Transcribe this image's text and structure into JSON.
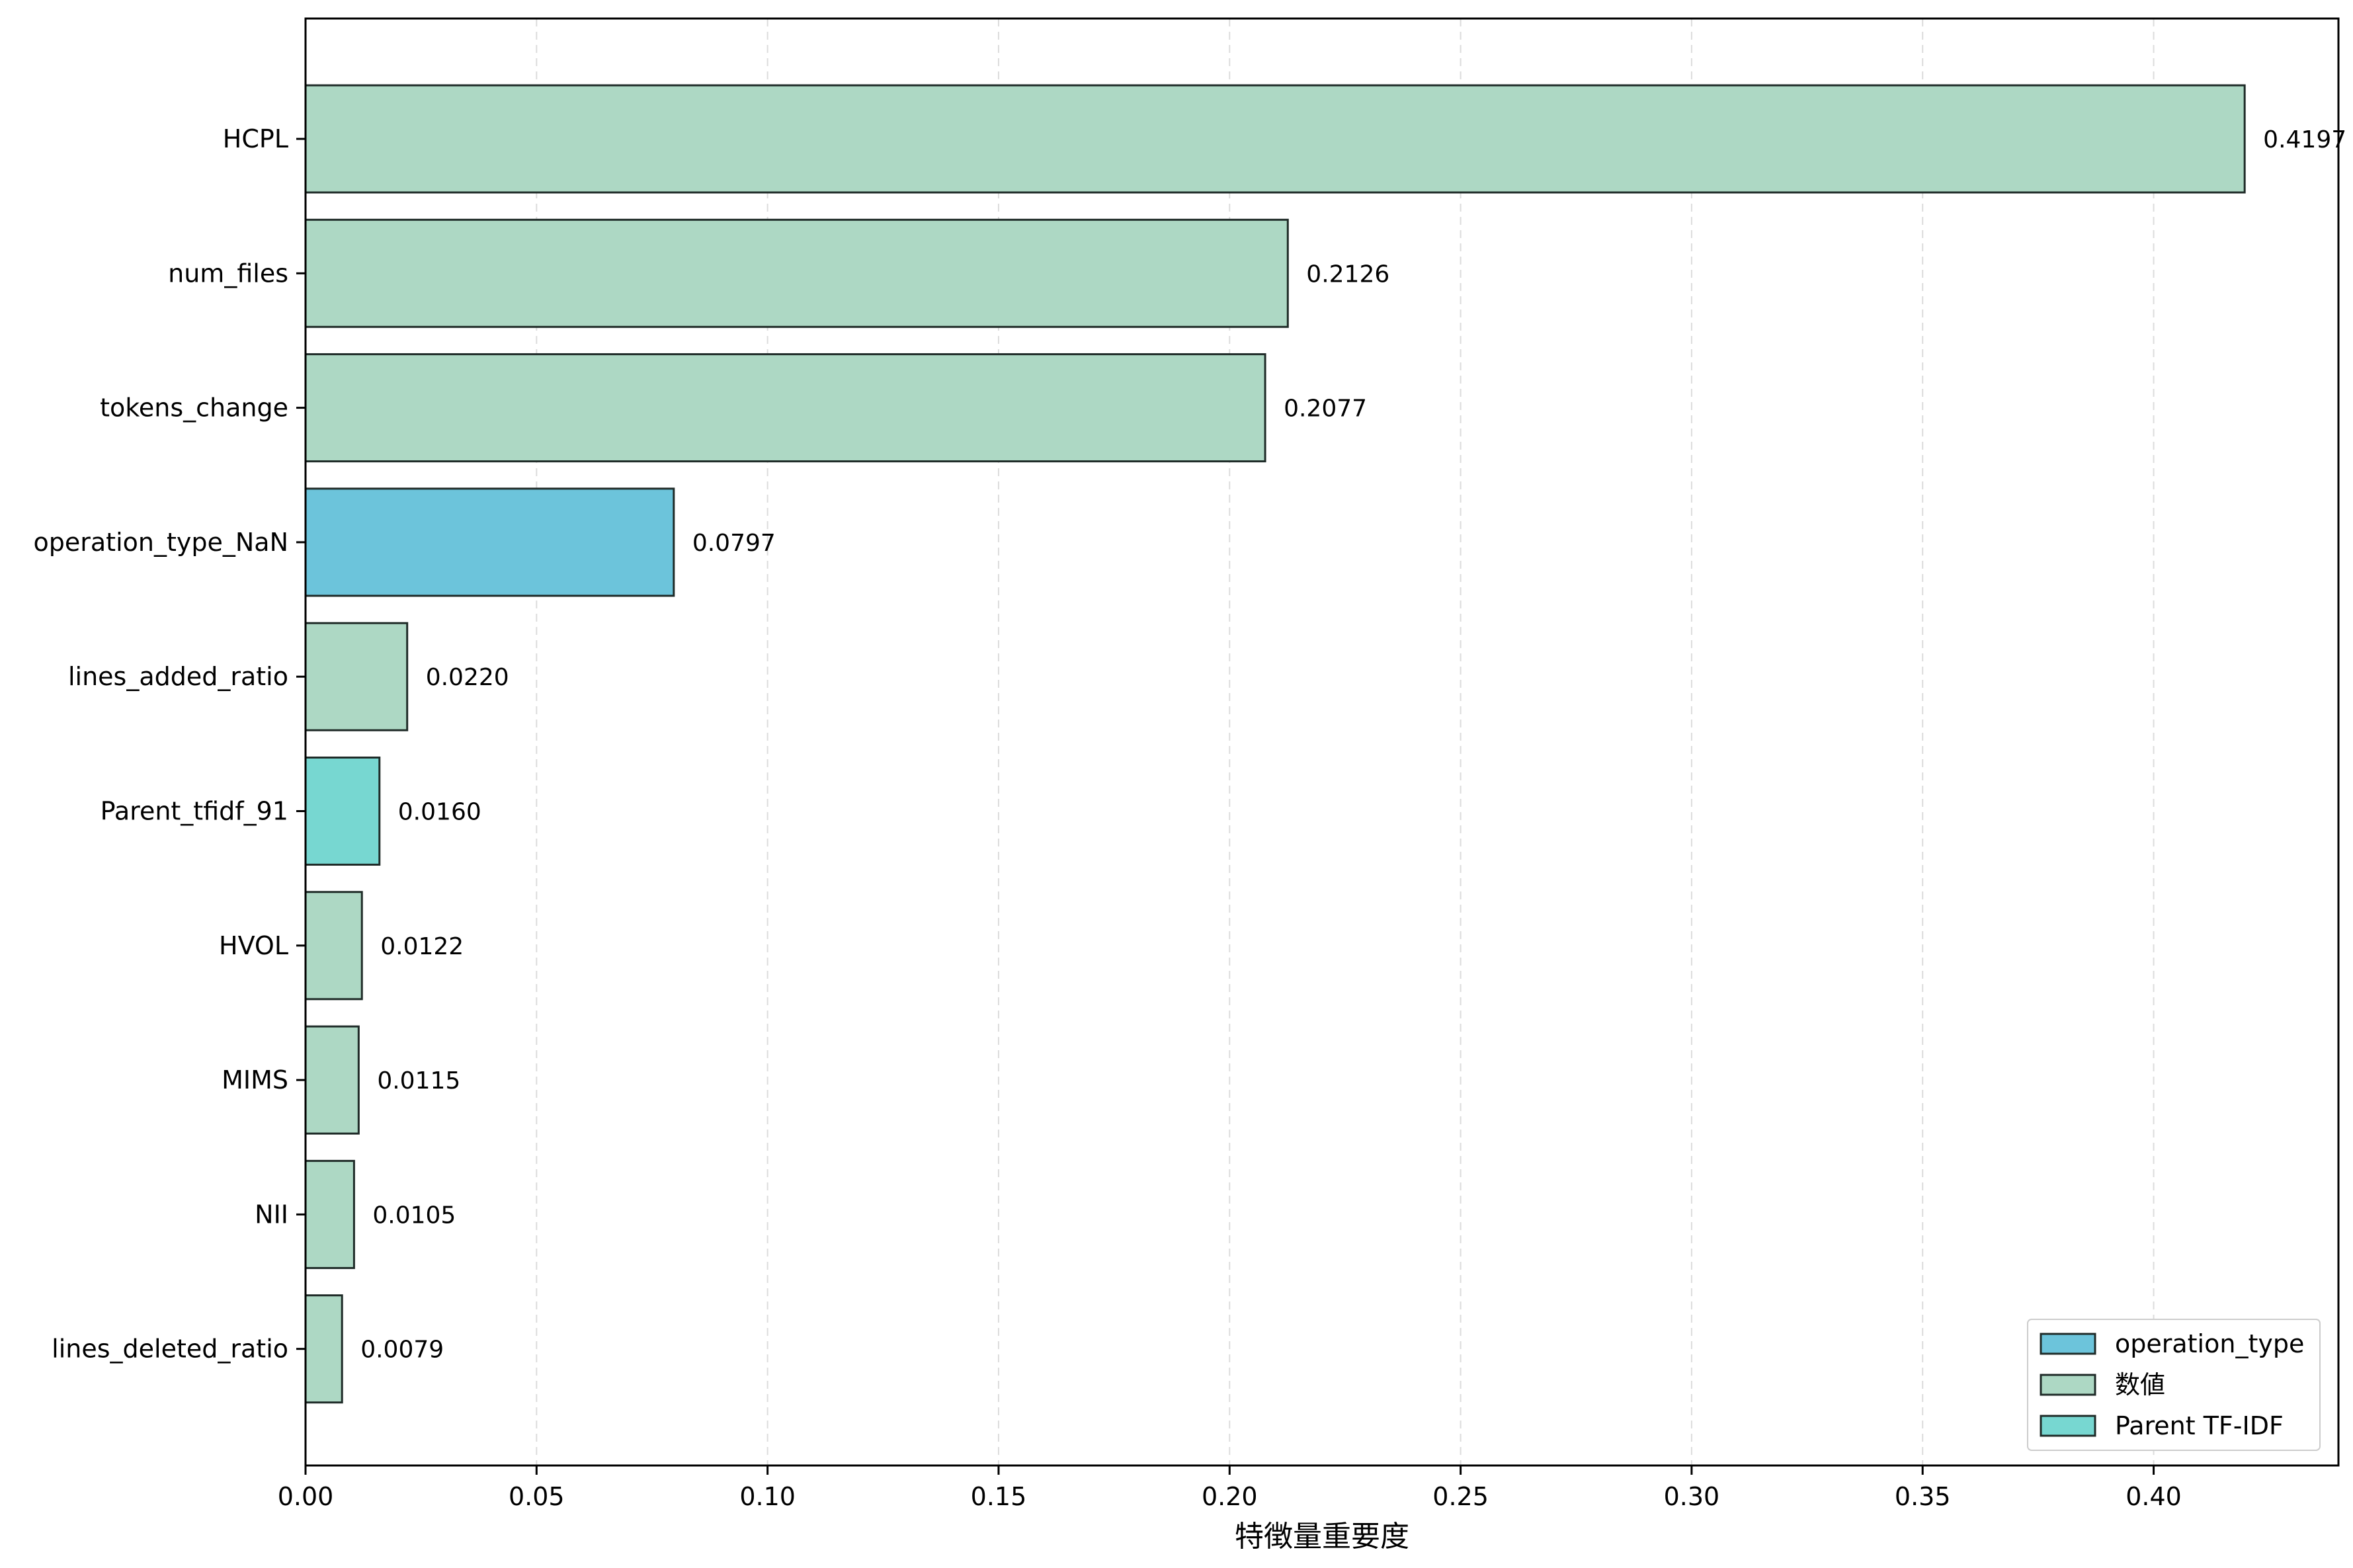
{
  "chart_data": {
    "type": "bar",
    "orientation": "horizontal",
    "categories": [
      "HCPL",
      "num_files",
      "tokens_change",
      "operation_type_NaN",
      "lines_added_ratio",
      "Parent_tfidf_91",
      "HVOL",
      "MIMS",
      "NII",
      "lines_deleted_ratio"
    ],
    "values": [
      0.4197,
      0.2126,
      0.2077,
      0.0797,
      0.022,
      0.016,
      0.0122,
      0.0115,
      0.0105,
      0.0079
    ],
    "value_labels": [
      "0.4197",
      "0.2126",
      "0.2077",
      "0.0797",
      "0.0220",
      "0.0160",
      "0.0122",
      "0.0115",
      "0.0105",
      "0.0079"
    ],
    "groups": [
      "数値",
      "数値",
      "数値",
      "operation_type",
      "数値",
      "Parent TF-IDF",
      "数値",
      "数値",
      "数値",
      "数値"
    ],
    "title": "",
    "xlabel": "特徴量重要度",
    "ylabel": "",
    "xlim": [
      0,
      0.44
    ],
    "xticks": [
      0.0,
      0.05,
      0.1,
      0.15,
      0.2,
      0.25,
      0.3,
      0.35,
      0.4
    ],
    "xtick_labels": [
      "0.00",
      "0.05",
      "0.10",
      "0.15",
      "0.20",
      "0.25",
      "0.30",
      "0.35",
      "0.40"
    ],
    "grid": "x-dashed",
    "legend_position": "lower-right",
    "legend": [
      {
        "name": "operation_type",
        "color": "#6cc4db"
      },
      {
        "name": "数値",
        "color": "#add8c4"
      },
      {
        "name": "Parent TF-IDF",
        "color": "#77d7d1"
      }
    ],
    "colors": {
      "operation_type": "#6cc4db",
      "数値": "#add8c4",
      "Parent TF-IDF": "#77d7d1",
      "bar_edge": "#1f2b28",
      "grid": "#dcdcdc",
      "axes": "#000000"
    }
  }
}
